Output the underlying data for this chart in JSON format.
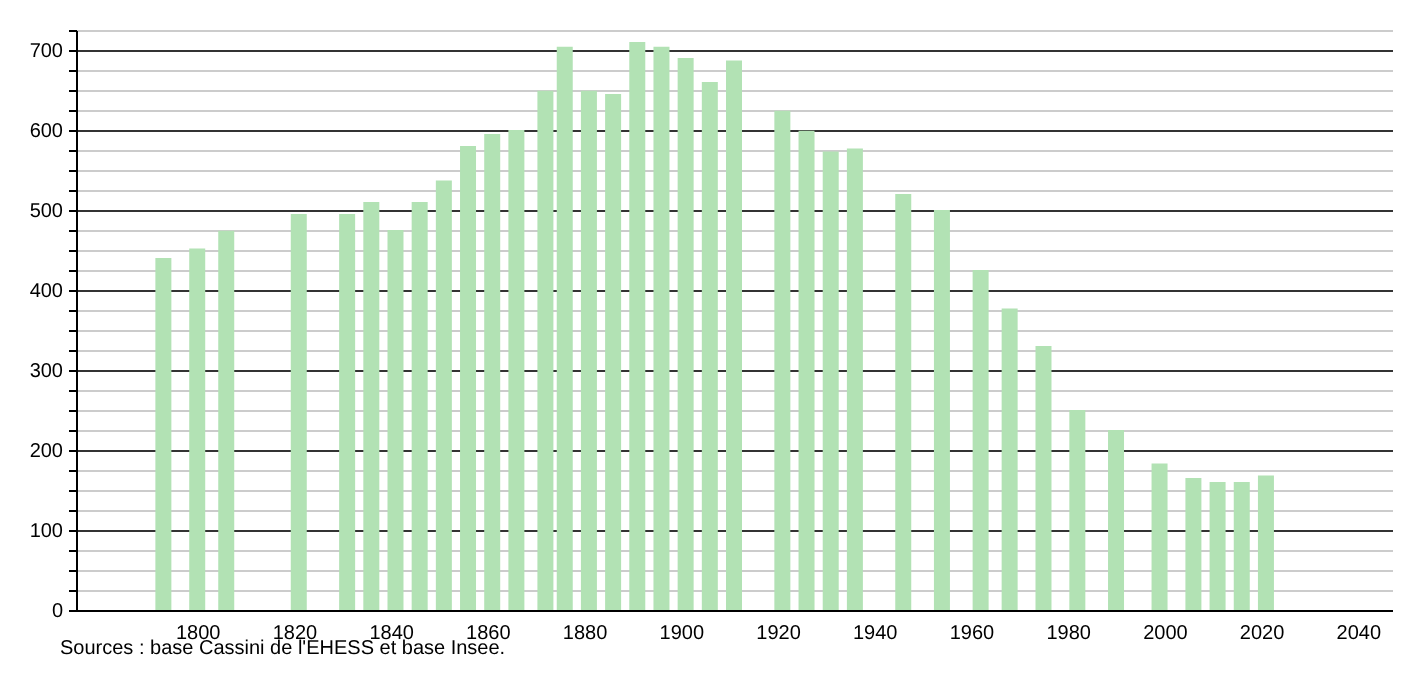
{
  "chart_data": {
    "type": "bar",
    "x": [
      1793,
      1800,
      1806,
      1821,
      1831,
      1836,
      1841,
      1846,
      1851,
      1856,
      1861,
      1866,
      1872,
      1876,
      1881,
      1886,
      1891,
      1896,
      1901,
      1906,
      1911,
      1921,
      1926,
      1931,
      1936,
      1946,
      1954,
      1962,
      1968,
      1975,
      1982,
      1990,
      1999,
      2006,
      2011,
      2016,
      2021
    ],
    "values": [
      440,
      452,
      474,
      495,
      495,
      510,
      475,
      510,
      537,
      580,
      595,
      600,
      649,
      704,
      649,
      645,
      710,
      704,
      690,
      660,
      687,
      624,
      599,
      573,
      577,
      520,
      500,
      425,
      377,
      330,
      250,
      225,
      183,
      165,
      160,
      160,
      168
    ],
    "color": "#b2e2b4",
    "xlim": [
      1777,
      2045
    ],
    "xticks": [
      1800,
      1820,
      1840,
      1860,
      1880,
      1900,
      1920,
      1940,
      1960,
      1980,
      2000,
      2020,
      2040
    ],
    "ylim": [
      0,
      725
    ],
    "yticks": [
      0,
      {
        "value": 25,
        "label": null
      },
      {
        "value": 50,
        "label": null
      },
      {
        "value": 75,
        "label": null
      },
      100,
      {
        "value": 125,
        "label": null
      },
      {
        "value": 150,
        "label": null
      },
      {
        "value": 175,
        "label": null
      },
      200,
      {
        "value": 225,
        "label": null
      },
      {
        "value": 250,
        "label": null
      },
      {
        "value": 275,
        "label": null
      },
      300,
      {
        "value": 325,
        "label": null
      },
      {
        "value": 350,
        "label": null
      },
      {
        "value": 375,
        "label": null
      },
      400,
      {
        "value": 425,
        "label": null
      },
      {
        "value": 450,
        "label": null
      },
      {
        "value": 475,
        "label": null
      },
      500,
      {
        "value": 525,
        "label": null
      },
      {
        "value": 550,
        "label": null
      },
      {
        "value": 575,
        "label": null
      },
      600,
      {
        "value": 625,
        "label": null
      },
      {
        "value": 650,
        "label": null
      },
      {
        "value": 675,
        "label": null
      },
      700,
      {
        "value": 725,
        "label": null
      }
    ],
    "grid": "y",
    "annotations": [
      "Sources : base Cassini de l'EHESS et base Insee."
    ]
  }
}
